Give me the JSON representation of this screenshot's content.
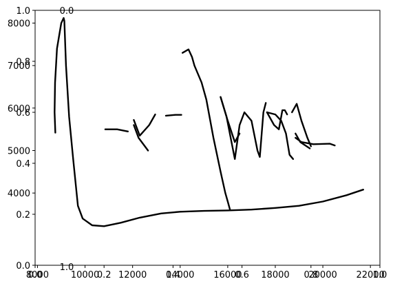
{
  "chart_data": {
    "type": "line",
    "title": "",
    "xlabel": "",
    "ylabel": "",
    "grid": false,
    "legend": "none",
    "line_color": "#000000",
    "primary_axes": {
      "xlim": [
        7900,
        22400
      ],
      "ylim": [
        2300,
        8300
      ],
      "x_ticks": [
        8000,
        10000,
        12000,
        14000,
        16000,
        18000,
        20000,
        22000
      ],
      "x_tick_labels": [
        "8000",
        "10000",
        "12000",
        "14000",
        "16000",
        "18000",
        "20000",
        "22000"
      ],
      "y_ticks": [
        4000,
        5000,
        6000,
        7000,
        8000
      ],
      "y_tick_labels": [
        "4000",
        "5000",
        "6000",
        "7000",
        "8000"
      ],
      "series": [
        {
          "name": "",
          "segments": [
            [
              [
                8750,
                5420
              ],
              [
                8720,
                5900
              ],
              [
                8740,
                6600
              ],
              [
                8820,
                7400
              ],
              [
                9000,
                8000
              ],
              [
                9100,
                8120
              ],
              [
                9130,
                8050
              ],
              [
                9200,
                7000
              ],
              [
                9330,
                5800
              ],
              [
                9500,
                4800
              ],
              [
                9700,
                3700
              ],
              [
                9900,
                3400
              ],
              [
                10300,
                3240
              ],
              [
                10800,
                3220
              ],
              [
                11500,
                3300
              ],
              [
                12300,
                3420
              ],
              [
                13200,
                3520
              ],
              [
                14000,
                3560
              ],
              [
                15000,
                3580
              ],
              [
                16000,
                3590
              ],
              [
                17000,
                3610
              ],
              [
                18000,
                3650
              ],
              [
                19000,
                3700
              ],
              [
                20000,
                3800
              ],
              [
                21000,
                3950
              ],
              [
                21700,
                4080
              ]
            ],
            [
              [
                10850,
                5500
              ],
              [
                11350,
                5500
              ],
              [
                11800,
                5450
              ]
            ],
            [
              [
                12050,
                5600
              ],
              [
                12250,
                5300
              ],
              [
                12650,
                5000
              ]
            ],
            [
              [
                12050,
                5720
              ],
              [
                12300,
                5350
              ],
              [
                12700,
                5600
              ],
              [
                12950,
                5850
              ]
            ],
            [
              [
                13400,
                5820
              ],
              [
                13800,
                5840
              ],
              [
                14050,
                5840
              ]
            ],
            [
              [
                14100,
                7300
              ],
              [
                14350,
                7380
              ],
              [
                14500,
                7200
              ],
              [
                14600,
                7000
              ],
              [
                14900,
                6600
              ],
              [
                15100,
                6200
              ],
              [
                15400,
                5300
              ],
              [
                15700,
                4500
              ],
              [
                15900,
                4000
              ],
              [
                16000,
                3800
              ],
              [
                16100,
                3600
              ]
            ],
            [
              [
                15700,
                6260
              ],
              [
                15950,
                5800
              ],
              [
                16300,
                4800
              ],
              [
                16500,
                5600
              ],
              [
                16700,
                5900
              ],
              [
                17000,
                5700
              ],
              [
                17250,
                5000
              ],
              [
                17350,
                4850
              ],
              [
                17500,
                5900
              ],
              [
                17600,
                6120
              ]
            ],
            [
              [
                15700,
                6260
              ],
              [
                16000,
                5700
              ],
              [
                16300,
                5200
              ],
              [
                16500,
                5400
              ]
            ],
            [
              [
                17650,
                5900
              ],
              [
                17950,
                5600
              ],
              [
                18150,
                5500
              ],
              [
                18300,
                5950
              ],
              [
                18400,
                5950
              ],
              [
                18500,
                5850
              ]
            ],
            [
              [
                17650,
                5900
              ],
              [
                18000,
                5850
              ],
              [
                18250,
                5700
              ],
              [
                18450,
                5400
              ],
              [
                18600,
                4900
              ],
              [
                18750,
                4800
              ]
            ],
            [
              [
                18850,
                5400
              ],
              [
                19050,
                5200
              ],
              [
                19450,
                5050
              ]
            ],
            [
              [
                18850,
                5300
              ],
              [
                19100,
                5200
              ],
              [
                19600,
                5150
              ],
              [
                20300,
                5160
              ],
              [
                20500,
                5120
              ]
            ],
            [
              [
                18700,
                5900
              ],
              [
                18900,
                6100
              ],
              [
                19100,
                5700
              ],
              [
                19350,
                5300
              ],
              [
                19500,
                5100
              ]
            ]
          ]
        }
      ]
    },
    "overlay_axes": {
      "xlim": [
        0.0,
        1.0
      ],
      "ylim": [
        0.0,
        1.0
      ],
      "x_ticks": [
        0.0,
        0.2,
        0.4,
        0.6,
        0.8,
        1.0
      ],
      "x_tick_labels": [
        "0.0",
        "0.2",
        "0.4",
        "0.6",
        "0.8",
        "1.0"
      ],
      "y_ticks": [
        0.0,
        0.2,
        0.4,
        0.6,
        0.8,
        1.0
      ],
      "y_tick_labels": [
        "0.0",
        "0.2",
        "0.4",
        "0.6",
        "0.8",
        "1.0"
      ]
    },
    "stray_labels": {
      "top_label": "0.0",
      "bottom_label": "1.0"
    }
  }
}
